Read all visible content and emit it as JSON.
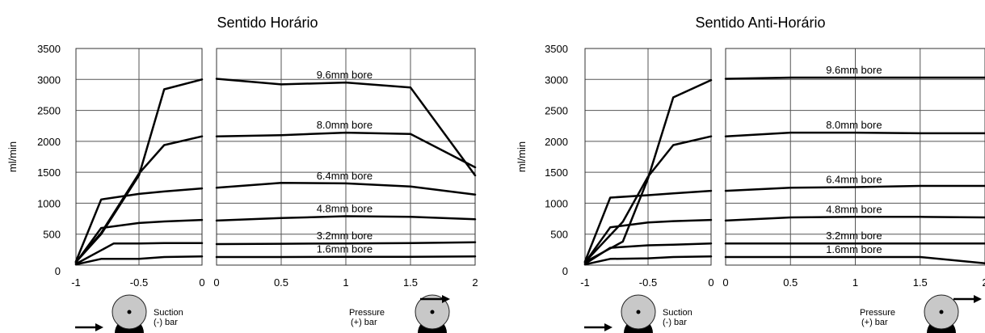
{
  "colors": {
    "line": "#000000",
    "grid": "#555555",
    "wheel": "#c8c8c8"
  },
  "chart_data": [
    {
      "type": "line",
      "title": "Sentido Horário",
      "ylabel": "ml/min",
      "ylim": [
        0,
        3500
      ],
      "yticks": [
        "0",
        "500",
        "1000",
        "1500",
        "2000",
        "2500",
        "3000",
        "3500"
      ],
      "grid": true,
      "suction_panel": {
        "xlim": [
          -1,
          0
        ],
        "xticks": [
          "-1",
          "-0.5",
          "0"
        ],
        "series": [
          {
            "x": [
              -1,
              -0.8,
              -0.5,
              -0.3,
              0
            ],
            "y": [
              50,
              500,
              1450,
              2840,
              3000
            ]
          },
          {
            "x": [
              -1,
              -0.8,
              -0.5,
              -0.3,
              0
            ],
            "y": [
              50,
              520,
              1480,
              1940,
              2080
            ]
          },
          {
            "x": [
              -1,
              -0.8,
              -0.5,
              -0.3,
              0
            ],
            "y": [
              60,
              1060,
              1150,
              1190,
              1240
            ]
          },
          {
            "x": [
              -1,
              -0.8,
              -0.5,
              -0.3,
              0
            ],
            "y": [
              40,
              600,
              680,
              705,
              730
            ]
          },
          {
            "x": [
              -1,
              -0.7,
              -0.5,
              -0.3,
              0
            ],
            "y": [
              20,
              350,
              350,
              355,
              355
            ]
          },
          {
            "x": [
              -1,
              -0.8,
              -0.5,
              -0.3,
              0
            ],
            "y": [
              10,
              100,
              100,
              130,
              140
            ]
          }
        ]
      },
      "pressure_panel": {
        "xlim": [
          0,
          2
        ],
        "xticks": [
          "0",
          "0.5",
          "1",
          "1.5",
          "2"
        ],
        "series": [
          {
            "name": "9.6mm bore",
            "x": [
              0,
              0.5,
              1,
              1.5,
              2
            ],
            "y": [
              3010,
              2920,
              2950,
              2870,
              1450
            ]
          },
          {
            "name": "8.0mm bore",
            "x": [
              0,
              0.5,
              1,
              1.5,
              2
            ],
            "y": [
              2080,
              2100,
              2140,
              2120,
              1580
            ]
          },
          {
            "name": "6.4mm bore",
            "x": [
              0,
              0.5,
              1,
              1.5,
              2
            ],
            "y": [
              1250,
              1330,
              1320,
              1270,
              1140
            ]
          },
          {
            "name": "4.8mm bore",
            "x": [
              0,
              0.5,
              1,
              1.5,
              2
            ],
            "y": [
              720,
              760,
              790,
              780,
              740
            ]
          },
          {
            "name": "3.2mm bore",
            "x": [
              0,
              0.5,
              1,
              1.5,
              2
            ],
            "y": [
              340,
              345,
              350,
              355,
              370
            ]
          },
          {
            "name": "1.6mm bore",
            "x": [
              0,
              0.5,
              1,
              1.5,
              2
            ],
            "y": [
              130,
              130,
              135,
              135,
              140
            ]
          }
        ]
      },
      "suction_label": [
        "Suction",
        "(-) bar"
      ],
      "pressure_label": [
        "Pressure",
        "(+) bar"
      ]
    },
    {
      "type": "line",
      "title": "Sentido Anti-Horário",
      "ylabel": "ml/min",
      "ylim": [
        0,
        3500
      ],
      "yticks": [
        "0",
        "500",
        "1000",
        "1500",
        "2000",
        "2500",
        "3000",
        "3500"
      ],
      "grid": true,
      "suction_panel": {
        "xlim": [
          -1,
          0
        ],
        "xticks": [
          "-1",
          "-0.5",
          "0"
        ],
        "series": [
          {
            "x": [
              -1,
              -0.7,
              -0.5,
              -0.3,
              0
            ],
            "y": [
              50,
              380,
              1400,
              2710,
              2990
            ]
          },
          {
            "x": [
              -1,
              -0.7,
              -0.5,
              -0.3,
              0
            ],
            "y": [
              50,
              700,
              1430,
              1940,
              2080
            ]
          },
          {
            "x": [
              -1,
              -0.8,
              -0.5,
              -0.3,
              0
            ],
            "y": [
              60,
              1090,
              1130,
              1160,
              1200
            ]
          },
          {
            "x": [
              -1,
              -0.8,
              -0.5,
              -0.3,
              0
            ],
            "y": [
              40,
              610,
              690,
              710,
              730
            ]
          },
          {
            "x": [
              -1,
              -0.8,
              -0.5,
              -0.3,
              0
            ],
            "y": [
              20,
              280,
              320,
              330,
              350
            ]
          },
          {
            "x": [
              -1,
              -0.8,
              -0.5,
              -0.3,
              0
            ],
            "y": [
              10,
              100,
              110,
              130,
              140
            ]
          }
        ]
      },
      "pressure_panel": {
        "xlim": [
          0,
          2
        ],
        "xticks": [
          "0",
          "0.5",
          "1",
          "1.5",
          "2"
        ],
        "series": [
          {
            "name": "9.6mm bore",
            "x": [
              0,
              0.5,
              1,
              1.5,
              2
            ],
            "y": [
              3010,
              3030,
              3030,
              3030,
              3030
            ]
          },
          {
            "name": "8.0mm bore",
            "x": [
              0,
              0.5,
              1,
              1.5,
              2
            ],
            "y": [
              2080,
              2140,
              2140,
              2130,
              2130
            ]
          },
          {
            "name": "6.4mm bore",
            "x": [
              0,
              0.5,
              1,
              1.5,
              2
            ],
            "y": [
              1200,
              1250,
              1260,
              1280,
              1280
            ]
          },
          {
            "name": "4.8mm bore",
            "x": [
              0,
              0.5,
              1,
              1.5,
              2
            ],
            "y": [
              720,
              770,
              780,
              780,
              770
            ]
          },
          {
            "name": "3.2mm bore",
            "x": [
              0,
              0.5,
              1,
              1.5,
              2
            ],
            "y": [
              350,
              350,
              350,
              350,
              350
            ]
          },
          {
            "name": "1.6mm bore",
            "x": [
              0,
              0.5,
              1,
              1.5,
              2
            ],
            "y": [
              130,
              130,
              130,
              130,
              30
            ]
          }
        ]
      },
      "suction_label": [
        "Suction",
        "(-) bar"
      ],
      "pressure_label": [
        "Pressure",
        "(+) bar"
      ]
    }
  ]
}
